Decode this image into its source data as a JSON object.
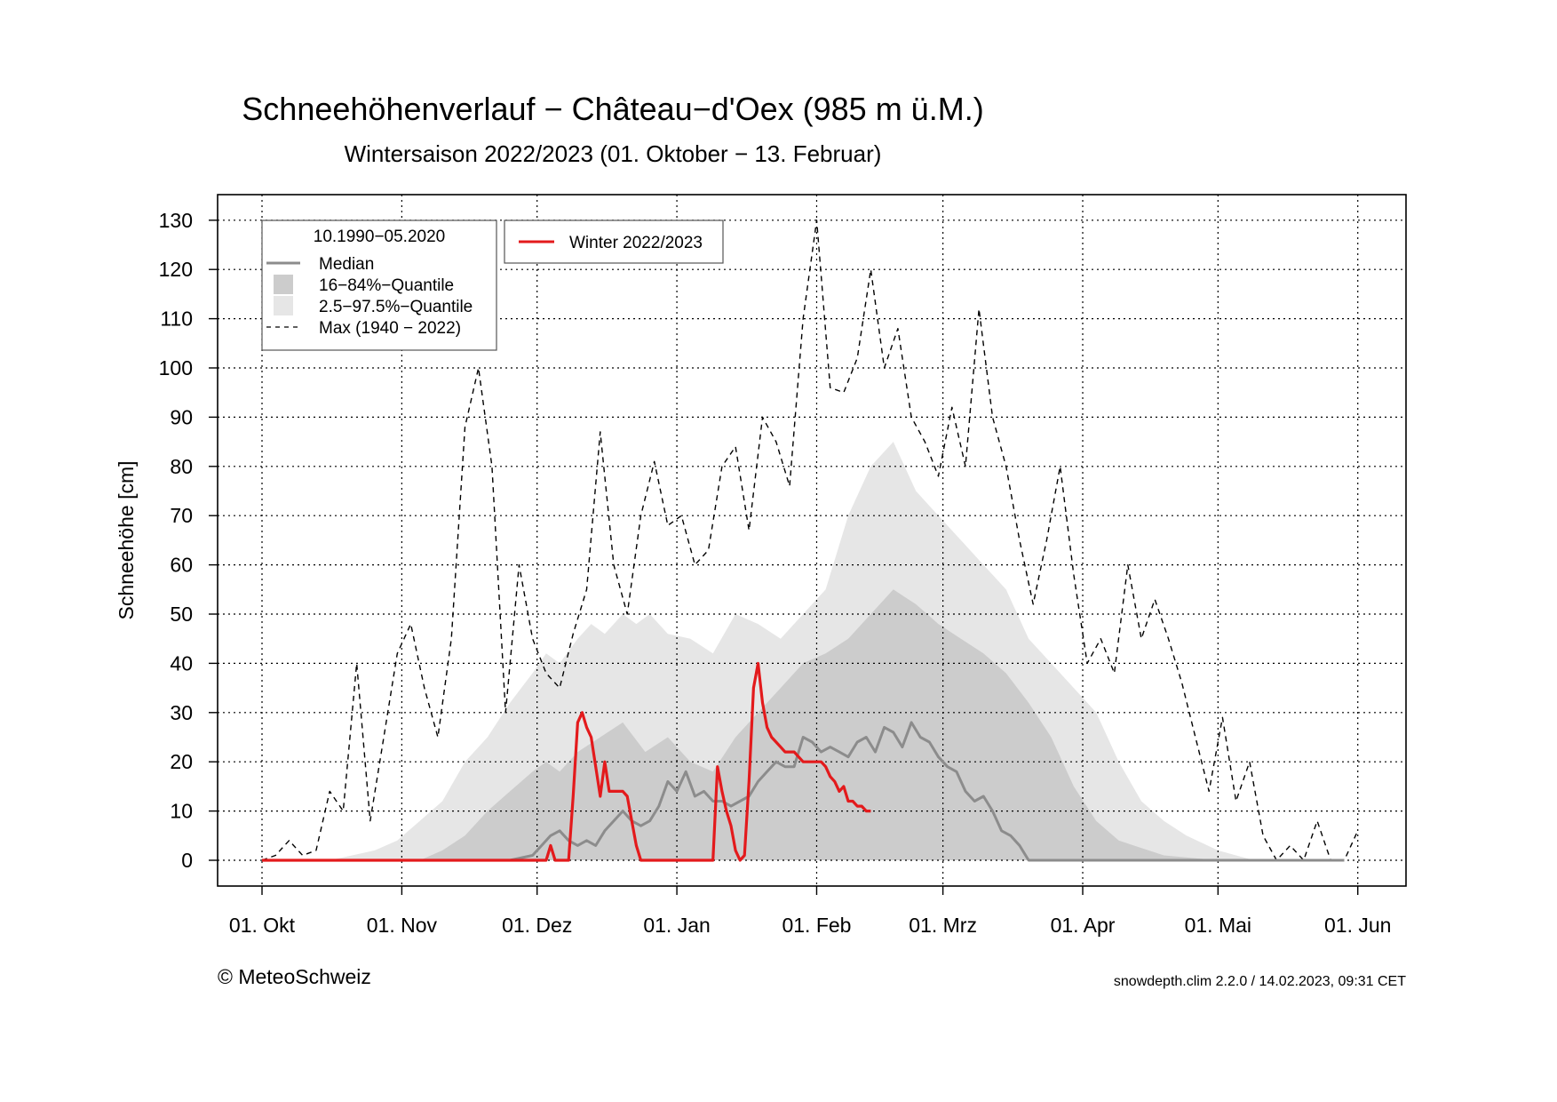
{
  "title": "Schneehöhenverlauf − Château−d'Oex (985 m ü.M.)",
  "subtitle": "Wintersaison 2022/2023 (01. Oktober − 13. Februar)",
  "footer": {
    "copyright": "© MeteoSchweiz",
    "version": "snowdepth.clim 2.2.0 / 14.02.2023, 09:31 CET"
  },
  "legend": {
    "climate_title": "10.1990−05.2020",
    "median": "Median",
    "q16_84": "16−84%−Quantile",
    "q2_97": "2.5−97.5%−Quantile",
    "max": "Max (1940 − 2022)",
    "current": "Winter 2022/2023"
  },
  "colors": {
    "current": "#e31a1c",
    "median": "#8c8c8c",
    "q16_84": "#cccccc",
    "q2_97": "#e6e6e6",
    "max": "#000000",
    "grid": "#000000"
  },
  "chart_data": {
    "type": "area",
    "xlabel": "",
    "ylabel": "Schneehöhe [cm]",
    "ylim": [
      0,
      130
    ],
    "yticks": [
      0,
      10,
      20,
      30,
      40,
      50,
      60,
      70,
      80,
      90,
      100,
      110,
      120,
      130
    ],
    "xlim_day": [
      -10,
      250
    ],
    "x_unit": "days since 01. Okt",
    "xticks": [
      {
        "day": 0,
        "label": "01. Okt"
      },
      {
        "day": 31,
        "label": "01. Nov"
      },
      {
        "day": 61,
        "label": "01. Dez"
      },
      {
        "day": 92,
        "label": "01. Jan"
      },
      {
        "day": 123,
        "label": "01. Feb"
      },
      {
        "day": 151,
        "label": "01. Mrz"
      },
      {
        "day": 182,
        "label": "01. Apr"
      },
      {
        "day": 212,
        "label": "01. Mai"
      },
      {
        "day": 243,
        "label": "01. Jun"
      }
    ],
    "grid": true,
    "legend_position": "top-left",
    "series": [
      {
        "name": "2.5−97.5%−Quantile",
        "kind": "band",
        "x": [
          0,
          15,
          20,
          25,
          30,
          35,
          40,
          45,
          50,
          55,
          60,
          63,
          66,
          70,
          73,
          76,
          80,
          83,
          86,
          90,
          95,
          100,
          105,
          110,
          115,
          120,
          125,
          130,
          135,
          140,
          145,
          150,
          155,
          160,
          165,
          170,
          175,
          180,
          185,
          190,
          195,
          200,
          205,
          212,
          220,
          230,
          240
        ],
        "lower": [
          0,
          0,
          0,
          0,
          0,
          0,
          0,
          0,
          0,
          0,
          0,
          0,
          0,
          0,
          0,
          0,
          0,
          0,
          0,
          0,
          0,
          0,
          0,
          0,
          2,
          3,
          4,
          5,
          5,
          4,
          3,
          2,
          1,
          0,
          0,
          0,
          0,
          0,
          0,
          0,
          0,
          0,
          0,
          0,
          0,
          0,
          0
        ],
        "upper": [
          0,
          0,
          1,
          2,
          4,
          8,
          12,
          20,
          25,
          32,
          38,
          42,
          40,
          45,
          48,
          46,
          50,
          48,
          50,
          46,
          45,
          42,
          50,
          48,
          45,
          50,
          55,
          70,
          80,
          85,
          75,
          70,
          65,
          60,
          55,
          45,
          40,
          35,
          30,
          20,
          12,
          8,
          5,
          2,
          0,
          0,
          0
        ]
      },
      {
        "name": "16−84%−Quantile",
        "kind": "band",
        "x": [
          0,
          30,
          35,
          40,
          45,
          50,
          55,
          60,
          63,
          66,
          70,
          75,
          80,
          85,
          90,
          95,
          100,
          105,
          110,
          115,
          120,
          125,
          130,
          135,
          140,
          145,
          150,
          155,
          160,
          165,
          170,
          175,
          180,
          185,
          190,
          200,
          212,
          240
        ],
        "lower": [
          0,
          0,
          0,
          0,
          0,
          0,
          0,
          0,
          0,
          0,
          0,
          0,
          0,
          0,
          0,
          0,
          0,
          0,
          0,
          0,
          0,
          0,
          0,
          0,
          0,
          0,
          0,
          0,
          0,
          0,
          0,
          0,
          0,
          0,
          0,
          0,
          0,
          0
        ],
        "upper": [
          0,
          0,
          0,
          2,
          5,
          10,
          14,
          18,
          20,
          18,
          22,
          25,
          28,
          22,
          25,
          20,
          18,
          25,
          30,
          35,
          40,
          42,
          45,
          50,
          55,
          52,
          48,
          45,
          42,
          38,
          32,
          25,
          15,
          8,
          4,
          1,
          0,
          0
        ]
      },
      {
        "name": "Max (1940 − 2022)",
        "kind": "line",
        "x": [
          0,
          3,
          6,
          9,
          12,
          15,
          18,
          21,
          24,
          27,
          30,
          33,
          36,
          39,
          42,
          45,
          48,
          51,
          54,
          57,
          60,
          63,
          66,
          69,
          72,
          75,
          78,
          81,
          84,
          87,
          90,
          93,
          96,
          99,
          102,
          105,
          108,
          111,
          114,
          117,
          120,
          123,
          126,
          129,
          132,
          135,
          138,
          141,
          144,
          147,
          150,
          153,
          156,
          159,
          162,
          165,
          168,
          171,
          174,
          177,
          180,
          183,
          186,
          189,
          192,
          195,
          198,
          201,
          204,
          207,
          210,
          213,
          216,
          219,
          222,
          225,
          228,
          231,
          234,
          237,
          240,
          243
        ],
        "values": [
          0,
          1,
          4,
          1,
          2,
          14,
          10,
          40,
          8,
          25,
          42,
          48,
          35,
          25,
          45,
          88,
          100,
          80,
          30,
          60,
          45,
          38,
          35,
          46,
          55,
          87,
          60,
          50,
          70,
          81,
          68,
          70,
          60,
          63,
          80,
          84,
          67,
          90,
          85,
          76,
          110,
          130,
          96,
          95,
          102,
          120,
          100,
          108,
          90,
          85,
          78,
          92,
          80,
          112,
          90,
          80,
          65,
          52,
          65,
          80,
          58,
          40,
          45,
          38,
          60,
          45,
          53,
          45,
          36,
          25,
          14,
          29,
          12,
          20,
          5,
          0,
          3,
          0,
          8,
          0,
          0,
          6
        ]
      },
      {
        "name": "Median",
        "kind": "line",
        "x": [
          0,
          55,
          60,
          62,
          64,
          66,
          68,
          70,
          72,
          74,
          76,
          78,
          80,
          82,
          84,
          86,
          88,
          90,
          92,
          94,
          96,
          98,
          100,
          102,
          104,
          106,
          108,
          110,
          112,
          114,
          116,
          118,
          120,
          122,
          124,
          126,
          128,
          130,
          132,
          134,
          136,
          138,
          140,
          142,
          144,
          146,
          148,
          150,
          152,
          154,
          156,
          158,
          160,
          162,
          164,
          166,
          168,
          170,
          180,
          240
        ],
        "values": [
          0,
          0,
          1,
          3,
          5,
          6,
          4,
          3,
          4,
          3,
          6,
          8,
          10,
          8,
          7,
          8,
          11,
          16,
          14,
          18,
          13,
          14,
          12,
          12,
          11,
          12,
          13,
          16,
          18,
          20,
          19,
          19,
          25,
          24,
          22,
          23,
          22,
          21,
          24,
          25,
          22,
          27,
          26,
          23,
          28,
          25,
          24,
          21,
          19,
          18,
          14,
          12,
          13,
          10,
          6,
          5,
          3,
          0,
          0,
          0
        ]
      },
      {
        "name": "Winter 2022/2023",
        "kind": "line",
        "x": [
          0,
          60,
          63,
          64,
          65,
          67,
          68,
          69,
          70,
          71,
          72,
          73,
          74,
          75,
          76,
          77,
          78,
          79,
          80,
          81,
          82,
          83,
          84,
          85,
          86,
          88,
          90,
          92,
          94,
          96,
          98,
          100,
          101,
          102,
          103,
          104,
          105,
          106,
          107,
          108,
          109,
          110,
          111,
          112,
          113,
          114,
          115,
          116,
          117,
          118,
          119,
          120,
          121,
          122,
          123,
          124,
          125,
          126,
          127,
          128,
          129,
          130,
          131,
          132,
          133,
          134,
          135
        ],
        "values": [
          0,
          0,
          0,
          3,
          0,
          0,
          0,
          13,
          28,
          30,
          27,
          25,
          19,
          13,
          20,
          14,
          14,
          14,
          14,
          13,
          8,
          3,
          0,
          0,
          0,
          0,
          0,
          0,
          0,
          0,
          0,
          0,
          19,
          14,
          10,
          7,
          2,
          0,
          1,
          16,
          35,
          40,
          32,
          27,
          25,
          24,
          23,
          22,
          22,
          22,
          21,
          20,
          20,
          20,
          20,
          20,
          19,
          17,
          16,
          14,
          15,
          12,
          12,
          11,
          11,
          10,
          10
        ]
      }
    ]
  }
}
